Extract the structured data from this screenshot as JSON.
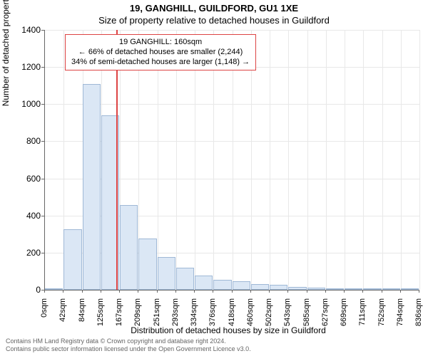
{
  "title_line1": "19, GANGHILL, GUILDFORD, GU1 1XE",
  "title_line2": "Size of property relative to detached houses in Guildford",
  "y_axis_label": "Number of detached properties",
  "x_axis_label": "Distribution of detached houses by size in Guildford",
  "footer_line1": "Contains HM Land Registry data © Crown copyright and database right 2024.",
  "footer_line2": "Contains public sector information licensed under the Open Government Licence v3.0.",
  "chart": {
    "type": "histogram",
    "ylim": [
      0,
      1400
    ],
    "ytick_step": 200,
    "yticks": [
      0,
      200,
      400,
      600,
      800,
      1000,
      1200,
      1400
    ],
    "xticks": [
      "0sqm",
      "42sqm",
      "84sqm",
      "125sqm",
      "167sqm",
      "209sqm",
      "251sqm",
      "293sqm",
      "334sqm",
      "376sqm",
      "418sqm",
      "460sqm",
      "502sqm",
      "543sqm",
      "585sqm",
      "627sqm",
      "669sqm",
      "711sqm",
      "752sqm",
      "794sqm",
      "836sqm"
    ],
    "values": [
      0,
      325,
      1110,
      940,
      455,
      275,
      175,
      120,
      75,
      55,
      45,
      30,
      25,
      15,
      10,
      8,
      5,
      4,
      3,
      2
    ],
    "bar_color": "#dbe7f5",
    "bar_border": "#9fb8d6",
    "background_color": "#ffffff",
    "grid_color": "#e8e8e8",
    "axis_color": "#666666",
    "marker_color": "#d44",
    "marker_bin_index": 3,
    "bar_width_ratio": 1.0
  },
  "callout": {
    "line1": "19 GANGHILL: 160sqm",
    "line2": "← 66% of detached houses are smaller (2,244)",
    "line3": "34% of semi-detached houses are larger (1,148) →"
  }
}
